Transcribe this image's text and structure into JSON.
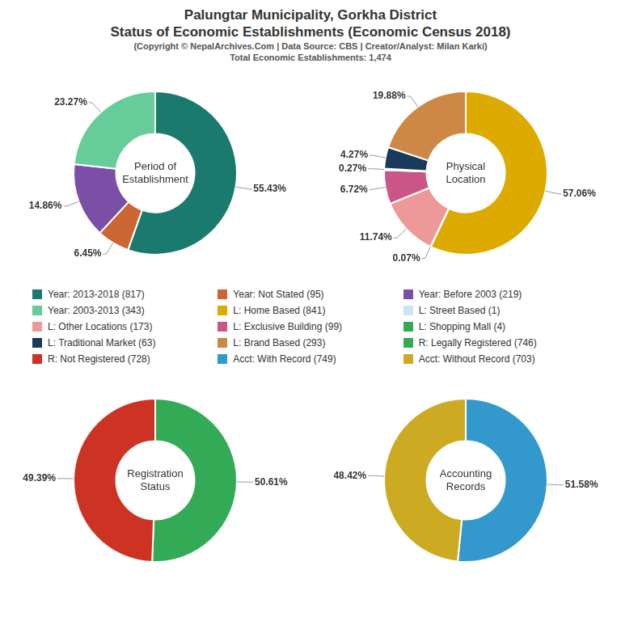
{
  "title": "Palungtar Municipality, Gorkha District\nStatus of Economic Establishments (Economic Census 2018)",
  "subtitle": "(Copyright © NepalArchives.Com | Data Source: CBS | Creator/Analyst: Milan Karki)\nTotal Economic Establishments: 1,474",
  "chart_data": [
    {
      "type": "doughnut",
      "title": "Period of\nEstablishment",
      "categories": [
        "Year: 2013-2018 (817)",
        "Year: Not Stated (95)",
        "Year: Before 2003 (219)",
        "Year: 2003-2013 (343)"
      ],
      "values": [
        55.43,
        6.45,
        14.86,
        23.27
      ],
      "value_labels": [
        "55.43%",
        "6.45%",
        "14.86%",
        "23.27%"
      ],
      "colors": [
        "#1a7a6e",
        "#cc6633",
        "#7b4fa6",
        "#66cc99"
      ],
      "data_labels": true
    },
    {
      "type": "doughnut",
      "title": "Physical\nLocation",
      "categories": [
        "L: Home Based (841)",
        "L: Street Based (1)",
        "L: Other Locations (173)",
        "L: Exclusive Building (99)",
        "L: Shopping Mall (4)",
        "L: Traditional Market (63)",
        "L: Brand Based (293)"
      ],
      "values": [
        57.06,
        0.07,
        11.74,
        6.72,
        0.27,
        4.27,
        19.88
      ],
      "value_labels": [
        "57.06%",
        "0.07%",
        "11.74%",
        "6.72%",
        "0.27%",
        "4.27%",
        "19.88%"
      ],
      "colors": [
        "#ddaa00",
        "#c8e6f5",
        "#ee9999",
        "#cc5588",
        "#33aa55",
        "#1a3a5c",
        "#cc8844"
      ],
      "data_labels": true
    },
    {
      "type": "doughnut",
      "title": "Registration\nStatus",
      "categories": [
        "R: Legally Registered (746)",
        "R: Not Registered (728)"
      ],
      "values": [
        50.61,
        49.39
      ],
      "value_labels": [
        "50.61%",
        "49.39%"
      ],
      "colors": [
        "#33aa55",
        "#cc3322"
      ],
      "data_labels": true
    },
    {
      "type": "doughnut",
      "title": "Accounting\nRecords",
      "categories": [
        "Acct: With Record (749)",
        "Acct: Without Record (703)"
      ],
      "values": [
        51.58,
        48.42
      ],
      "value_labels": [
        "51.58%",
        "48.42%"
      ],
      "colors": [
        "#3399cc",
        "#ccaa22"
      ],
      "data_labels": true
    }
  ]
}
